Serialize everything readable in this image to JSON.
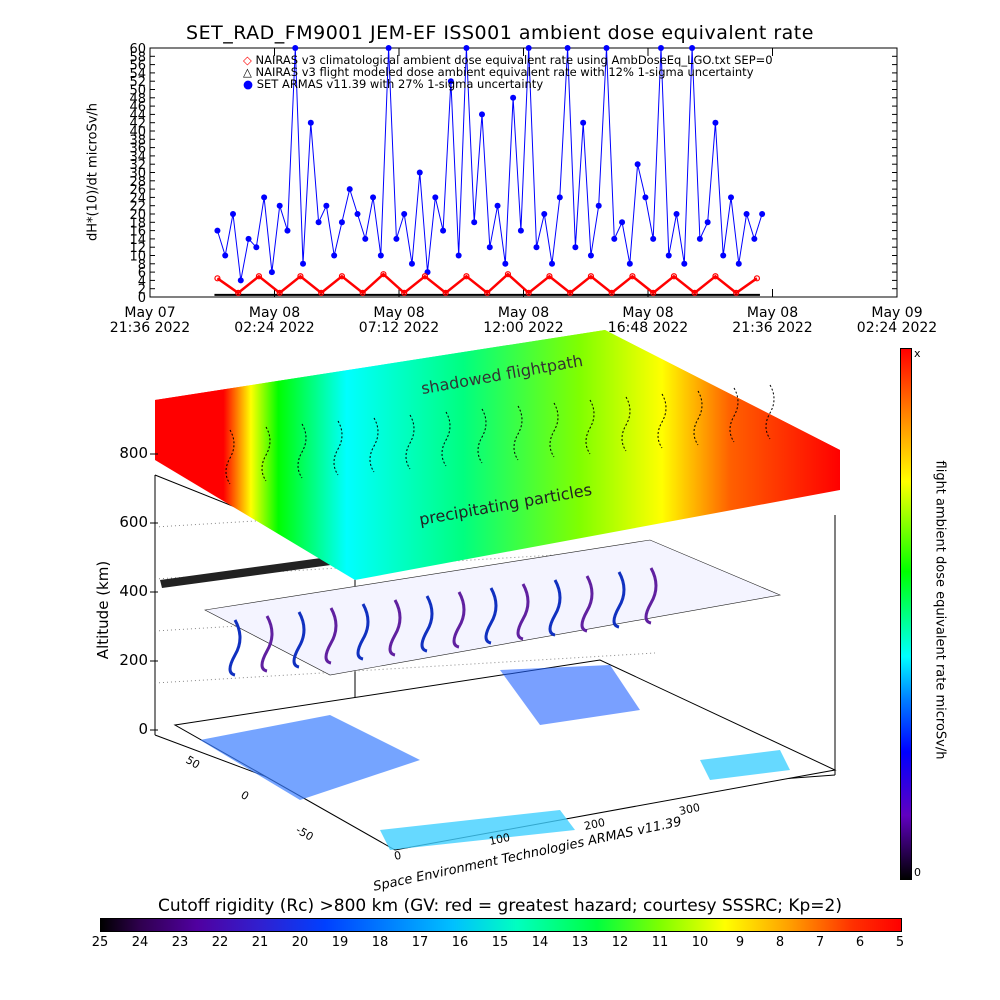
{
  "title": "SET_RAD_FM9001  JEM-EF ISS001 ambient dose equivalent rate",
  "chart_data": [
    {
      "type": "line",
      "title": "SET_RAD_FM9001  JEM-EF ISS001 ambient dose equivalent rate",
      "xlabel": "",
      "ylabel": "dH*(10)/dt microSv/h",
      "ylim": [
        0,
        60
      ],
      "ytick_labels": [
        "0",
        "2",
        "4",
        "6",
        "8",
        "10",
        "12",
        "14",
        "16",
        "18",
        "20",
        "22",
        "24",
        "26",
        "28",
        "30",
        "32",
        "34",
        "36",
        "38",
        "40",
        "42",
        "44",
        "46",
        "48",
        "50",
        "52",
        "54",
        "56",
        "58",
        "60"
      ],
      "xtick_labels": [
        {
          "line1": "May 07",
          "line2": "21:36 2022"
        },
        {
          "line1": "May 08",
          "line2": "02:24 2022"
        },
        {
          "line1": "May 08",
          "line2": "07:12 2022"
        },
        {
          "line1": "May 08",
          "line2": "12:00 2022"
        },
        {
          "line1": "May 08",
          "line2": "16:48 2022"
        },
        {
          "line1": "May 08",
          "line2": "21:36 2022"
        },
        {
          "line1": "May 09",
          "line2": "02:24 2022"
        }
      ],
      "xlim_hours": [
        0,
        28.8
      ],
      "legend_position": "top-left",
      "legend": [
        "NAIRAS v3 climatological ambient dose equivalent rate using AmbDoseEq_LGO.txt SEP=0",
        "NAIRAS v3 flight modeled dose ambient equivalent rate with 12% 1-sigma uncertainty",
        "SET ARMAS v11.39 with 27% 1-sigma uncertainty"
      ],
      "colors": {
        "armas": "#0000ff",
        "nairas": "#ff0000",
        "flight": "#000000"
      },
      "series": [
        {
          "name": "SET ARMAS v11.39 with 27% 1-sigma uncertainty",
          "x_hours": [
            2.6,
            2.9,
            3.2,
            3.5,
            3.8,
            4.1,
            4.4,
            4.7,
            5.0,
            5.3,
            5.6,
            5.9,
            6.2,
            6.5,
            6.8,
            7.1,
            7.4,
            7.7,
            8.0,
            8.3,
            8.6,
            8.9,
            9.2,
            9.5,
            9.8,
            10.1,
            10.4,
            10.7,
            11.0,
            11.3,
            11.6,
            11.9,
            12.2,
            12.5,
            12.8,
            13.1,
            13.4,
            13.7,
            14.0,
            14.3,
            14.6,
            14.9,
            15.2,
            15.5,
            15.8,
            16.1,
            16.4,
            16.7,
            17.0,
            17.3,
            17.6,
            17.9,
            18.2,
            18.5,
            18.8,
            19.1,
            19.4,
            19.7,
            20.0,
            20.3,
            20.6,
            20.9,
            21.2,
            21.5,
            21.8,
            22.1,
            22.4,
            22.7,
            23.0,
            23.3,
            23.6
          ],
          "values": [
            16,
            10,
            20,
            4,
            14,
            12,
            24,
            6,
            22,
            16,
            60,
            8,
            42,
            18,
            22,
            10,
            18,
            26,
            20,
            14,
            24,
            10,
            60,
            14,
            20,
            8,
            30,
            6,
            24,
            16,
            52,
            10,
            60,
            18,
            44,
            12,
            22,
            8,
            48,
            16,
            60,
            12,
            20,
            8,
            24,
            60,
            12,
            42,
            10,
            22,
            60,
            14,
            18,
            8,
            32,
            24,
            14,
            60,
            10,
            20,
            8,
            60,
            14,
            18,
            42,
            10,
            24,
            8,
            20,
            14,
            20
          ]
        },
        {
          "name": "NAIRAS v3 climatological ambient dose equivalent rate using AmbDoseEq_LGO.txt SEP=0",
          "x_hours": [
            2.6,
            3.4,
            4.2,
            5.0,
            5.8,
            6.6,
            7.4,
            8.2,
            9.0,
            9.8,
            10.6,
            11.4,
            12.2,
            13.0,
            13.8,
            14.6,
            15.4,
            16.2,
            17.0,
            17.8,
            18.6,
            19.4,
            20.2,
            21.0,
            21.8,
            22.6,
            23.4
          ],
          "values": [
            4.5,
            1,
            5,
            1,
            5,
            1,
            5,
            1,
            5.5,
            1,
            5,
            1,
            5,
            1,
            5.5,
            1,
            5,
            1,
            5,
            1,
            5,
            1,
            5,
            1,
            5,
            1,
            4.5
          ]
        }
      ]
    },
    {
      "type": "heatmap",
      "colorbar_label": "flight ambient dose equivalent rate microSv/h",
      "colorbar_top": "x",
      "colorbar_bottom": "0",
      "altitude_label": "Altitude (km)",
      "altitude_ticks": [
        "0",
        "200",
        "400",
        "600",
        "800"
      ],
      "lon_ticks": [
        "0",
        "100",
        "200",
        "300"
      ],
      "lat_ticks": [
        "50",
        "0",
        "-50"
      ],
      "annotations": [
        "shadowed flightpath",
        "precipitating particles"
      ],
      "credit": "Space Environment Technologies ARMAS v11.39"
    },
    {
      "type": "colorbar",
      "title": "Cutoff rigidity (Rc) >800 km (GV: red = greatest hazard; courtesy SSSRC; Kp=2)",
      "ticks": [
        "25",
        "24",
        "23",
        "22",
        "21",
        "20",
        "19",
        "18",
        "17",
        "16",
        "15",
        "14",
        "13",
        "12",
        "11",
        "10",
        "9",
        "8",
        "7",
        "6",
        "5"
      ]
    }
  ]
}
